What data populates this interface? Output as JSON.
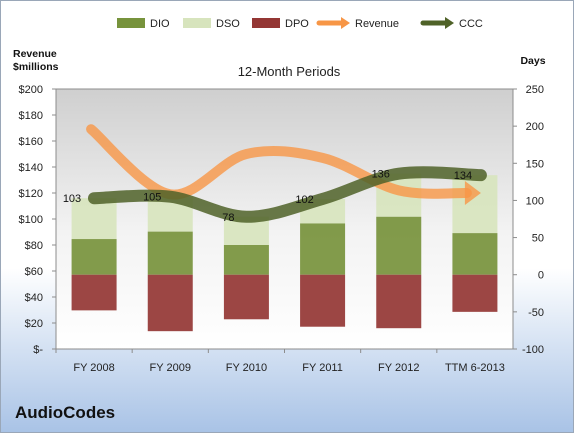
{
  "chart_data": {
    "type": "bar",
    "title": "12-Month Periods",
    "company": "AudioCodes",
    "ylabel_left": "Revenue\n$millions",
    "ylabel_right": "Days",
    "categories": [
      "FY 2008",
      "FY 2009",
      "FY 2010",
      "FY 2011",
      "FY 2012",
      "TTM 6-2013"
    ],
    "left_axis": {
      "min": 0,
      "max": 200,
      "step": 20,
      "ticks": [
        "$-",
        "$20",
        "$40",
        "$60",
        "$80",
        "$100",
        "$120",
        "$140",
        "$160",
        "$180",
        "$200"
      ]
    },
    "right_axis": {
      "min": -100,
      "max": 250,
      "step": 50,
      "ticks": [
        "-100",
        "-50",
        "0",
        "50",
        "100",
        "150",
        "200",
        "250"
      ]
    },
    "legend": [
      {
        "name": "DIO",
        "kind": "bar",
        "color": "#77933c"
      },
      {
        "name": "DSO",
        "kind": "bar",
        "color": "#d7e4bd"
      },
      {
        "name": "DPO",
        "kind": "bar",
        "color": "#943634"
      },
      {
        "name": "Revenue",
        "kind": "arrow",
        "color": "#f79646"
      },
      {
        "name": "CCC",
        "kind": "arrow",
        "color": "#4f6228"
      }
    ],
    "legend_position": "top",
    "series": [
      {
        "name": "DIO",
        "axis": "days",
        "values": [
          48,
          58,
          40,
          69,
          78,
          56
        ]
      },
      {
        "name": "DSO",
        "axis": "days",
        "values": [
          55,
          47,
          38,
          33,
          58,
          78
        ]
      },
      {
        "name": "DPO",
        "axis": "days",
        "values": [
          -48,
          -76,
          -60,
          -70,
          -72,
          -50
        ]
      },
      {
        "name": "Revenue",
        "axis": "revenue",
        "values": [
          166,
          119,
          150,
          147,
          122,
          120
        ]
      },
      {
        "name": "CCC",
        "axis": "days",
        "values": [
          103,
          105,
          78,
          102,
          136,
          134
        ]
      }
    ],
    "data_labels": [
      {
        "series": "CCC",
        "texts": [
          "103",
          "105",
          "78",
          "102",
          "136",
          "134"
        ]
      }
    ],
    "grid": false
  }
}
